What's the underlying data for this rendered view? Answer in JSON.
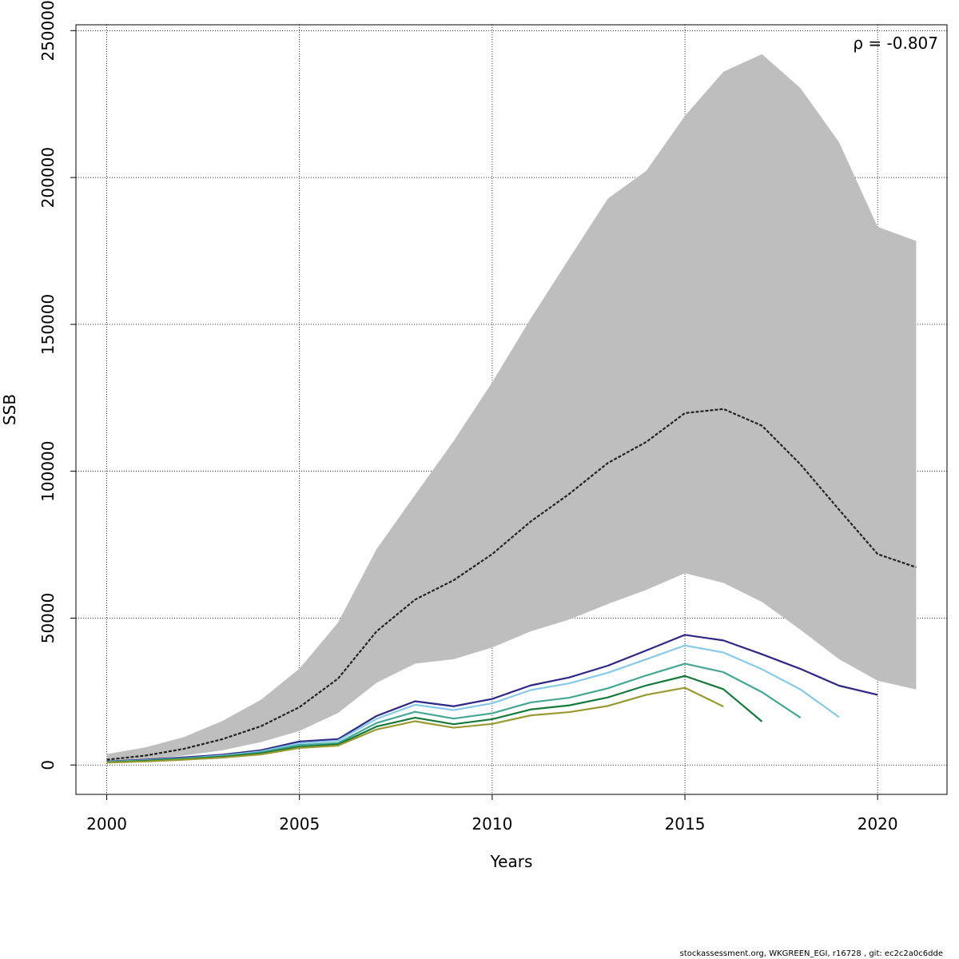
{
  "chart_data": {
    "type": "line",
    "title": "",
    "xlabel": "Years",
    "ylabel": "SSB",
    "xlim": [
      1999.2,
      2021.8
    ],
    "ylim": [
      -10000,
      252000
    ],
    "x_ticks": [
      "2000",
      "2005",
      "2010",
      "2015",
      "2020"
    ],
    "y_ticks": [
      "0",
      "50000",
      "100000",
      "150000",
      "200000",
      "250000"
    ],
    "grid": true,
    "annotation": "ρ = -0.807",
    "band": {
      "x": [
        2000,
        2001,
        2002,
        2003,
        2004,
        2005,
        2006,
        2007,
        2008,
        2009,
        2010,
        2011,
        2012,
        2013,
        2014,
        2015,
        2016,
        2017,
        2018,
        2019,
        2020,
        2021
      ],
      "lower": [
        1000,
        1900,
        3200,
        5000,
        7800,
        11600,
        17700,
        28000,
        34500,
        36000,
        40000,
        45500,
        49500,
        54800,
        59600,
        65300,
        62000,
        55500,
        46000,
        36000,
        28700,
        25700
      ],
      "upper": [
        3700,
        6000,
        9500,
        15000,
        22200,
        32800,
        48500,
        73500,
        92000,
        110300,
        130300,
        152000,
        172500,
        192800,
        202300,
        221000,
        236000,
        242000,
        230400,
        212000,
        183200,
        178400
      ],
      "color": "#bebebe"
    },
    "series": [
      {
        "color": "#222222",
        "dashed": true,
        "x": [
          2000,
          2001,
          2002,
          2003,
          2004,
          2005,
          2006,
          2007,
          2008,
          2009,
          2010,
          2011,
          2012,
          2013,
          2014,
          2015,
          2016,
          2017,
          2018,
          2019,
          2020,
          2021
        ],
        "values": [
          1800,
          3200,
          5500,
          8800,
          13200,
          19700,
          29400,
          45500,
          56300,
          62900,
          71800,
          82900,
          92300,
          102800,
          110000,
          119800,
          121200,
          115500,
          102300,
          86900,
          71800,
          67300
        ]
      },
      {
        "color": "#2e2785",
        "x": [
          2000,
          2001,
          2002,
          2003,
          2004,
          2005,
          2006,
          2007,
          2008,
          2009,
          2010,
          2011,
          2012,
          2013,
          2014,
          2015,
          2016,
          2017,
          2018,
          2019,
          2020
        ],
        "values": [
          1200,
          1800,
          2600,
          3500,
          5000,
          8000,
          8800,
          16700,
          21700,
          20000,
          22500,
          27100,
          29800,
          33800,
          39000,
          44300,
          42400,
          37700,
          32700,
          27000,
          23900
        ]
      },
      {
        "color": "#87c9e8",
        "x": [
          2000,
          2001,
          2002,
          2003,
          2004,
          2005,
          2006,
          2007,
          2008,
          2009,
          2010,
          2011,
          2012,
          2013,
          2014,
          2015,
          2016,
          2017,
          2018,
          2019
        ],
        "values": [
          1100,
          1600,
          2300,
          3200,
          4600,
          7400,
          8300,
          15700,
          20500,
          18700,
          21000,
          25500,
          27800,
          31400,
          36000,
          40700,
          38300,
          32600,
          25700,
          16300
        ]
      },
      {
        "color": "#44a795",
        "x": [
          2000,
          2001,
          2002,
          2003,
          2004,
          2005,
          2006,
          2007,
          2008,
          2009,
          2010,
          2011,
          2012,
          2013,
          2014,
          2015,
          2016,
          2017,
          2018
        ],
        "values": [
          1000,
          1500,
          2200,
          3000,
          4300,
          6800,
          7500,
          14300,
          18100,
          15800,
          17600,
          21300,
          22900,
          26100,
          30500,
          34500,
          31600,
          24800,
          16100
        ]
      },
      {
        "color": "#157a3a",
        "x": [
          2000,
          2001,
          2002,
          2003,
          2004,
          2005,
          2006,
          2007,
          2008,
          2009,
          2010,
          2011,
          2012,
          2013,
          2014,
          2015,
          2016,
          2017
        ],
        "values": [
          900,
          1400,
          2000,
          2800,
          4000,
          6200,
          7000,
          13100,
          16100,
          13900,
          15600,
          18900,
          20300,
          23000,
          27100,
          30300,
          25800,
          14800
        ]
      },
      {
        "color": "#9a9a32",
        "x": [
          2000,
          2001,
          2002,
          2003,
          2004,
          2005,
          2006,
          2007,
          2008,
          2009,
          2010,
          2011,
          2012,
          2013,
          2014,
          2015,
          2016
        ],
        "values": [
          800,
          1200,
          1800,
          2500,
          3600,
          5800,
          6600,
          12100,
          14900,
          12700,
          14000,
          16900,
          18000,
          20100,
          23900,
          26300,
          19900
        ]
      }
    ]
  },
  "footer": "stockassessment.org, WKGREEN_EGI, r16728 , git: ec2c2a0c6dde"
}
